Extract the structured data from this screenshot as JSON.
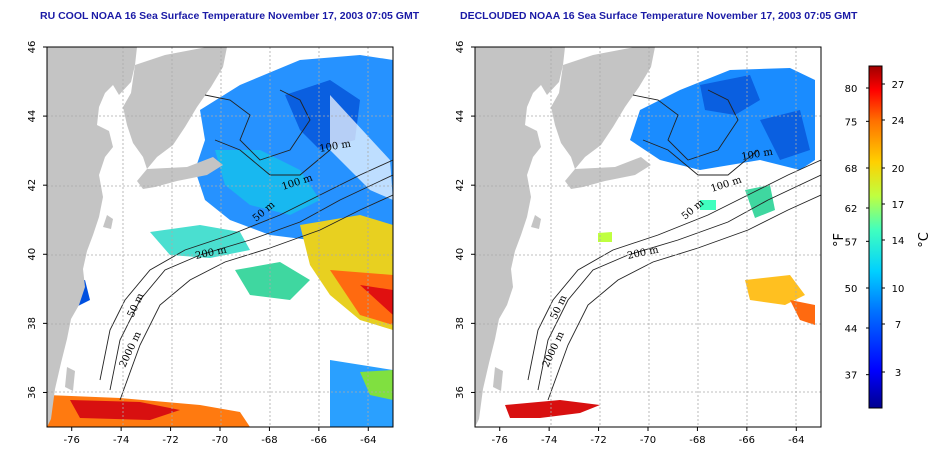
{
  "titles": {
    "left": "RU COOL NOAA 16 Sea Surface Temperature November 17, 2003 07:05 GMT",
    "right": "DECLOUDED NOAA 16 Sea Surface Temperature November 17, 2003 07:05 GMT"
  },
  "map_extent": {
    "lon": [
      -77,
      -63
    ],
    "lat": [
      35,
      46
    ]
  },
  "lon_ticks": [
    -76,
    -74,
    -72,
    -70,
    -68,
    -66,
    -64
  ],
  "lat_ticks": [
    36,
    38,
    40,
    42,
    44,
    46
  ],
  "contour_labels": [
    "50 m",
    "100 m",
    "200 m",
    "2000 m"
  ],
  "colorbar": {
    "units_f": "°F",
    "units_c": "°C",
    "fahrenheit_ticks": [
      37,
      44,
      50,
      57,
      62,
      68,
      75,
      80
    ],
    "celsius_ticks": [
      3,
      7,
      10,
      14,
      17,
      20,
      24,
      27
    ],
    "colors": [
      "#00008f",
      "#0000ff",
      "#0070ff",
      "#00d0ff",
      "#40ffbf",
      "#bfff40",
      "#ffd000",
      "#ff7000",
      "#ff0000",
      "#9f0000"
    ]
  },
  "colors": {
    "land": "#c4c4c4",
    "ocean_bg": "#ffffff",
    "title": "#1a1aa6",
    "grid": "#aaaaaa"
  }
}
